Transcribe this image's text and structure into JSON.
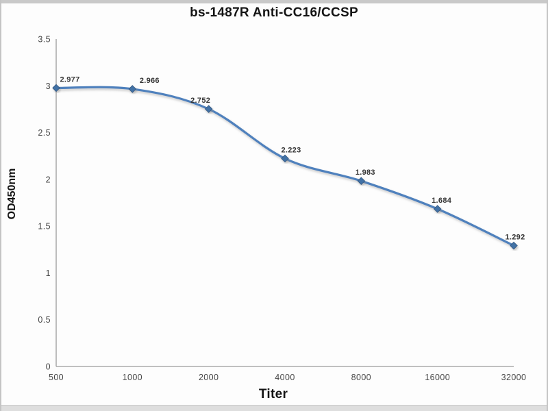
{
  "window": {
    "background_color": "#fdfdfd",
    "frame_color": "#c4c4c4",
    "top_strip_color": "#c9c9c9",
    "bottom_strip_color": "#dedede"
  },
  "chart_data": {
    "type": "line",
    "title": "bs-1487R Anti-CC16/CCSP",
    "xlabel": "Titer",
    "ylabel": "OD450nm",
    "x_scale": "log2-equal-spacing",
    "categories": [
      500,
      1000,
      2000,
      4000,
      8000,
      16000,
      32000
    ],
    "x_tick_labels": [
      "500",
      "1000",
      "2000",
      "4000",
      "8000",
      "16000",
      "32000"
    ],
    "series": [
      {
        "name": "OD450nm",
        "values": [
          2.977,
          2.966,
          2.752,
          2.223,
          1.983,
          1.684,
          1.292
        ],
        "line_color": "#4f81bd",
        "marker": "diamond",
        "marker_fill": "#4372a6",
        "marker_stroke": "#30567f",
        "smoothed": true
      }
    ],
    "data_labels": [
      "2.977",
      "2.966",
      "2.752",
      "2.223",
      "1.983",
      "1.684",
      "1.292"
    ],
    "y_ticks": [
      0,
      0.5,
      1,
      1.5,
      2,
      2.5,
      3,
      3.5
    ],
    "y_tick_labels": [
      "0",
      "0.5",
      "1",
      "1.5",
      "2",
      "2.5",
      "3",
      "3.5"
    ],
    "ylim": [
      0,
      3.5
    ],
    "grid": false,
    "legend": "none",
    "axis_color": "#9b9b9b"
  }
}
